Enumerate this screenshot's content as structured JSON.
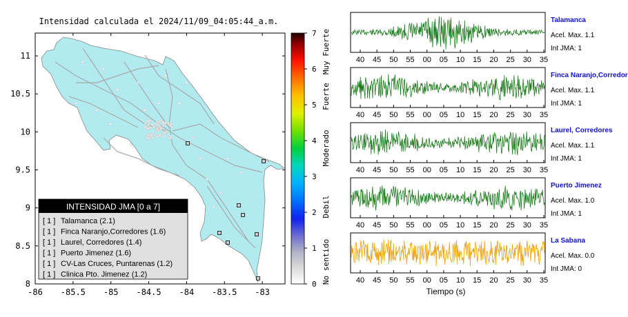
{
  "map": {
    "title": "Intensidad calculada el 2024/11/09_04:05:44_a.m.",
    "lon_ticks": [
      "-86",
      "-85.5",
      "-85",
      "-84.5",
      "-84",
      "-83.5",
      "-83"
    ],
    "lat_ticks": [
      "8",
      "8.5",
      "9",
      "9.5",
      "10",
      "10.5",
      "11"
    ],
    "xlim": [
      -86,
      -82.7
    ],
    "ylim": [
      8,
      11.3
    ],
    "land_color": "#b2ebef",
    "legend": {
      "title": "INTENSIDAD JMA [0 a 7]",
      "items": [
        {
          "level": "[ 1 ]",
          "label": "Talamanca (2.1)"
        },
        {
          "level": "[ 1 ]",
          "label": "Finca Naranjo,Corredores (1.6)"
        },
        {
          "level": "[ 1 ]",
          "label": "Laurel, Corredores (1.4)"
        },
        {
          "level": "[ 1 ]",
          "label": "Puerto Jimenez (1.6)"
        },
        {
          "level": "[ 1 ]",
          "label": "CV-Las Cruces, Puntarenas (1.2)"
        },
        {
          "level": "[ 1 ]",
          "label": "Clinica Pto. Jimenez (1.2)"
        }
      ]
    }
  },
  "colorbar": {
    "ticks": [
      "0",
      "1",
      "2",
      "3",
      "4",
      "5",
      "6",
      "7"
    ],
    "labels": [
      "No sentido",
      "Debil",
      "Moderado",
      "Fuerte",
      "Muy Fuerte"
    ]
  },
  "traces": {
    "x_ticks": [
      "40",
      "45",
      "50",
      "55",
      "00",
      "05",
      "10",
      "15",
      "20",
      "25",
      "30",
      "35"
    ],
    "xlabel": "Tiempo (s)",
    "stations": [
      {
        "name": "Talamanca",
        "acel": "Acel. Max. 1.1",
        "jma": "Int JMA: 1",
        "color": "#1a7a1a"
      },
      {
        "name": "Finca Naranjo,Corredores",
        "acel": "Acel. Max. 1.1",
        "jma": "Int JMA: 1",
        "color": "#1a7a1a"
      },
      {
        "name": "Laurel, Corredores",
        "acel": "Acel. Max. 1.1",
        "jma": "Int JMA: 1",
        "color": "#1a7a1a"
      },
      {
        "name": "Puerto Jimenez",
        "acel": "Acel. Max. 1.0",
        "jma": "Int JMA: 1",
        "color": "#1a7a1a"
      },
      {
        "name": "La Sabana",
        "acel": "Acel. Max. 0.0",
        "jma": "Int JMA: 0",
        "color": "#f0a000"
      }
    ],
    "name_color": "#1010dd"
  },
  "chart_data": [
    {
      "type": "map",
      "title": "Intensidad calculada el 2024/11/09_04:05:44_a.m.",
      "xlim": [
        -86,
        -82.7
      ],
      "ylim": [
        8,
        11.3
      ],
      "legend": [
        "Talamanca (2.1)",
        "Finca Naranjo,Corredores (1.6)",
        "Laurel, Corredores (1.4)",
        "Puerto Jimenez (1.6)",
        "CV-Las Cruces, Puntarenas (1.2)",
        "Clinica Pto. Jimenez (1.2)"
      ]
    },
    {
      "type": "line",
      "xlabel": "Tiempo (s)",
      "series": [
        {
          "name": "Talamanca",
          "acel_max": 1.1,
          "int_jma": 1
        },
        {
          "name": "Finca Naranjo,Corredores",
          "acel_max": 1.1,
          "int_jma": 1
        },
        {
          "name": "Laurel, Corredores",
          "acel_max": 1.1,
          "int_jma": 1
        },
        {
          "name": "Puerto Jimenez",
          "acel_max": 1.0,
          "int_jma": 1
        },
        {
          "name": "La Sabana",
          "acel_max": 0.0,
          "int_jma": 0
        }
      ]
    }
  ]
}
